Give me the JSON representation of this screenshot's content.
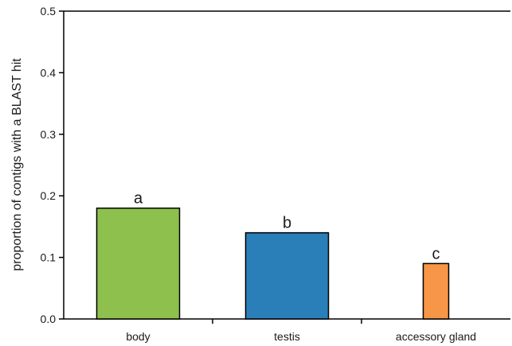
{
  "chart_data": {
    "type": "bar",
    "title": "",
    "xlabel": "",
    "ylabel": "proportion of contigs with a BLAST hit",
    "categories": [
      "body",
      "testis",
      "accessory gland"
    ],
    "values": [
      0.18,
      0.14,
      0.09
    ],
    "significance_labels": [
      "a",
      "b",
      "c"
    ],
    "bar_colors": [
      "#8DC04D",
      "#2B7FB8",
      "#F79646"
    ],
    "ylim": [
      0,
      0.5
    ],
    "yticks": [
      "0.0",
      "0.1",
      "0.2",
      "0.3",
      "0.4",
      "0.5"
    ],
    "grid": false,
    "legend": "none"
  }
}
